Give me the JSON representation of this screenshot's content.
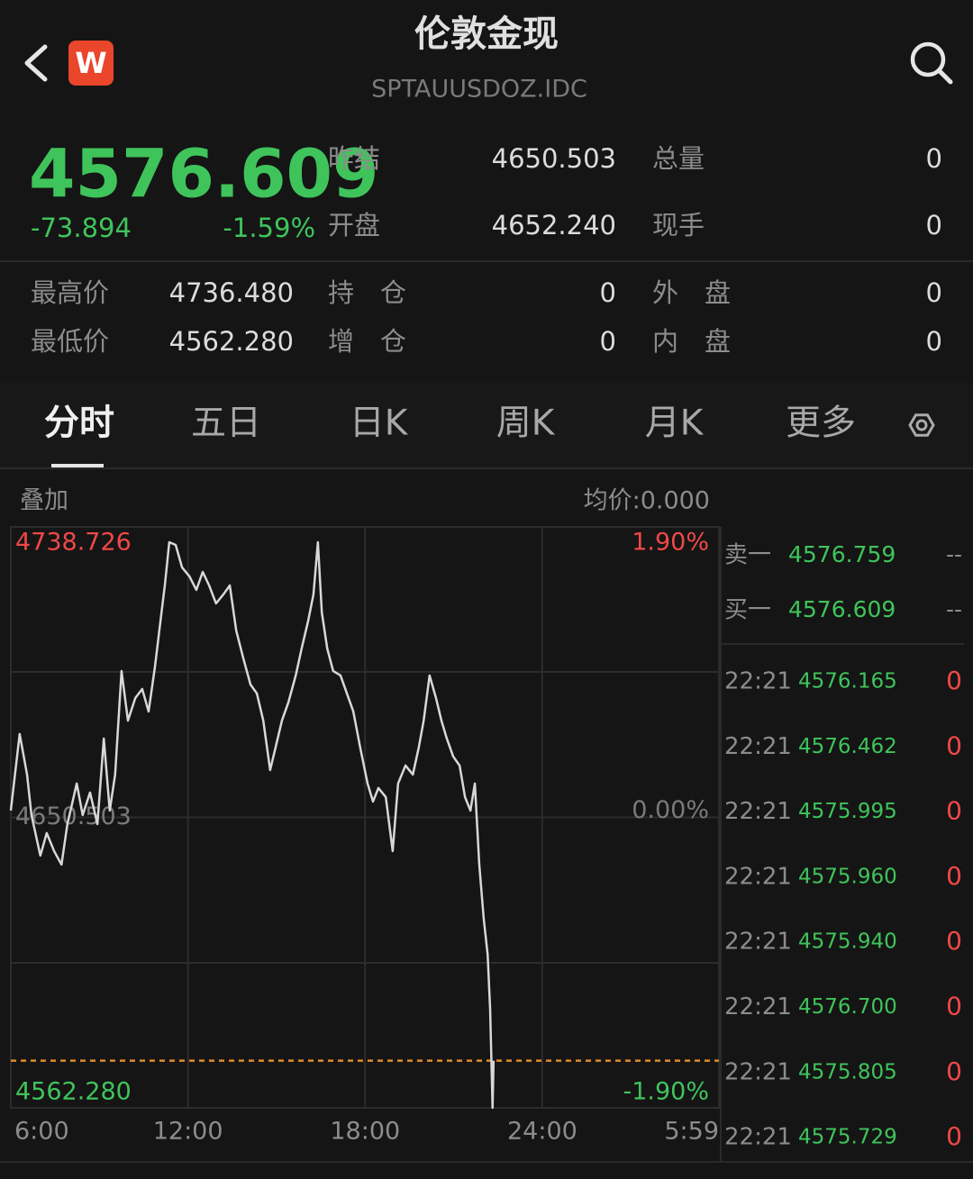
{
  "header": {
    "title": "伦敦金现",
    "subtitle": "SPTAUUSDOZ.IDC",
    "badge": "W"
  },
  "quote": {
    "last": 4576.609,
    "change": -73.894,
    "change_pct": "-1.59%",
    "stats": [
      [
        "昨结",
        "4650.503",
        "总量",
        "0"
      ],
      [
        "开盘",
        "4652.240",
        "现手",
        "0"
      ]
    ],
    "details": [
      [
        "最高价",
        "4736.480",
        "持　仓",
        "0",
        "外　盘",
        "0"
      ],
      [
        "最低价",
        "4562.280",
        "增　仓",
        "0",
        "内　盘",
        "0"
      ]
    ]
  },
  "tabs": [
    "分时",
    "五日",
    "日K",
    "周K",
    "月K",
    "更多"
  ],
  "chart_header": {
    "overlay": "叠加",
    "avg_price": "均价:0.000"
  },
  "chart_data": {
    "type": "line",
    "color": "#d8d8d8",
    "grid": true,
    "x": [
      "6:00",
      "6:18",
      "6:33",
      "6:42",
      "7:00",
      "7:13",
      "7:28",
      "7:43",
      "7:55",
      "8:14",
      "8:26",
      "8:41",
      "8:56",
      "9:09",
      "9:21",
      "9:32",
      "9:45",
      "9:58",
      "10:13",
      "10:27",
      "10:40",
      "10:53",
      "11:04",
      "11:13",
      "11:22",
      "11:35",
      "11:48",
      "12:03",
      "12:17",
      "12:30",
      "12:43",
      "12:57",
      "13:12",
      "13:25",
      "13:38",
      "13:52",
      "14:07",
      "14:20",
      "14:33",
      "14:47",
      "14:58",
      "15:11",
      "15:24",
      "15:39",
      "15:51",
      "16:04",
      "16:15",
      "16:24",
      "16:32",
      "16:43",
      "16:55",
      "17:10",
      "17:23",
      "17:36",
      "17:50",
      "18:05",
      "18:16",
      "18:27",
      "18:42",
      "18:56",
      "19:07",
      "19:22",
      "19:37",
      "19:49",
      "19:59",
      "20:11",
      "20:24",
      "20:35",
      "20:46",
      "20:59",
      "21:12",
      "21:23",
      "21:34",
      "21:43",
      "21:52",
      "22:01",
      "22:09",
      "22:14",
      "22:19",
      "22:21"
    ],
    "values": [
      4652.57,
      4675.82,
      4663.51,
      4651.2,
      4638.9,
      4645.73,
      4640.26,
      4636.16,
      4648.47,
      4660.78,
      4651.2,
      4658.04,
      4648.47,
      4674.45,
      4652.57,
      4663.51,
      4694.96,
      4679.92,
      4686.76,
      4689.5,
      4682.66,
      4696.33,
      4710.01,
      4720.95,
      4734.08,
      4733.26,
      4726.42,
      4723.69,
      4719.58,
      4725.05,
      4720.95,
      4715.48,
      4718.22,
      4720.95,
      4707.28,
      4699.07,
      4690.86,
      4688.13,
      4679.92,
      4664.88,
      4671.72,
      4679.92,
      4685.39,
      4693.6,
      4701.8,
      4710.01,
      4718.22,
      4734.08,
      4712.75,
      4701.8,
      4694.96,
      4693.6,
      4688.13,
      4682.66,
      4671.72,
      4660.78,
      4655.31,
      4659.41,
      4656.67,
      4640.26,
      4660.78,
      4666.25,
      4663.51,
      4671.72,
      4679.92,
      4693.6,
      4686.76,
      4679.92,
      4674.45,
      4668.98,
      4666.25,
      4656.67,
      4652.57,
      4660.78,
      4636.16,
      4619.75,
      4608.81,
      4592.4,
      4562.28,
      4576.61
    ],
    "xlim": [
      "6:00",
      "5:59"
    ],
    "xticks": [
      "6:00",
      "12:00",
      "18:00",
      "24:00",
      "5:59"
    ],
    "ylim": [
      4562.28,
      4738.726
    ],
    "yticks": [
      4738.726,
      4650.503,
      {
        "value": 4562.28,
        "label": "4562.280"
      }
    ],
    "y2lim": [
      -1.9,
      1.9
    ],
    "y2ticks": [
      {
        "value": 1.9,
        "label": "1.90%"
      },
      {
        "value": 0,
        "label": "0.00%"
      },
      {
        "value": -1.9,
        "label": "-1.90%"
      }
    ]
  },
  "order_book": {
    "quotes": [
      {
        "label": "卖一",
        "price": "4576.759",
        "volume": "--"
      },
      {
        "label": "买一",
        "price": "4576.609",
        "volume": "--"
      }
    ],
    "trades": [
      {
        "time": "22:21",
        "price": "4576.165",
        "volume": "0"
      },
      {
        "time": "22:21",
        "price": "4576.462",
        "volume": "0"
      },
      {
        "time": "22:21",
        "price": "4575.995",
        "volume": "0"
      },
      {
        "time": "22:21",
        "price": "4575.960",
        "volume": "0"
      },
      {
        "time": "22:21",
        "price": "4575.940",
        "volume": "0"
      },
      {
        "time": "22:21",
        "price": "4576.700",
        "volume": "0"
      },
      {
        "time": "22:21",
        "price": "4575.805",
        "volume": "0"
      },
      {
        "time": "22:21",
        "price": "4575.729",
        "volume": "0"
      }
    ]
  }
}
